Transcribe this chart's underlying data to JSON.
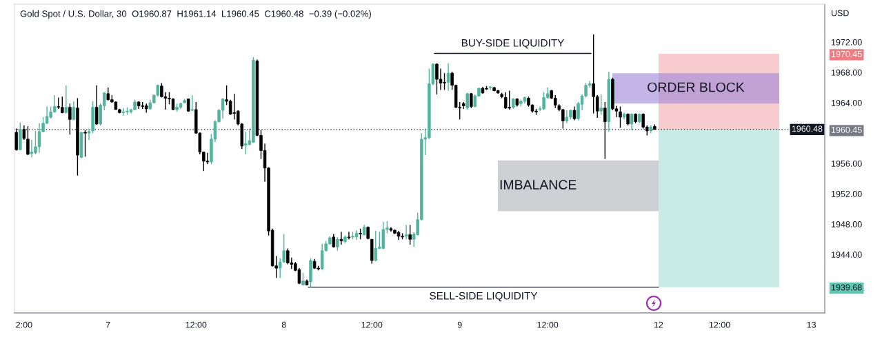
{
  "chart_data": {
    "type": "candlestick",
    "title": "Gold Spot / U.S. Dollar, 30  O1960.87  H1961.14  L1960.45  C1960.48  −0.39 (−0.02%)",
    "ylabel": "USD",
    "categories": [
      null,
      null,
      "2:00",
      null,
      null,
      null,
      null,
      null,
      null,
      null,
      null,
      null,
      null,
      null,
      null,
      null,
      null,
      null,
      null,
      null,
      null,
      null,
      null,
      null,
      "7",
      null,
      null,
      null,
      null,
      null,
      null,
      null,
      null,
      null,
      null,
      null,
      null,
      null,
      null,
      null,
      null,
      null,
      null,
      null,
      null,
      null,
      null,
      "12:00",
      null,
      null,
      null,
      null,
      null,
      null,
      null,
      null,
      null,
      null,
      null,
      null,
      null,
      null,
      null,
      null,
      null,
      null,
      null,
      null,
      null,
      null,
      "8",
      null,
      null,
      null,
      null,
      null,
      null,
      null,
      null,
      null,
      null,
      null,
      null,
      null,
      null,
      null,
      null,
      null,
      null,
      null,
      null,
      null,
      null,
      "12:00",
      null,
      null,
      null,
      null,
      null,
      null,
      null,
      null,
      null,
      null,
      null,
      null,
      null,
      null,
      null,
      null,
      null,
      null,
      null,
      null,
      null,
      null,
      "9",
      null,
      null,
      null,
      null,
      null,
      null,
      null,
      null,
      null,
      null,
      null,
      null,
      null,
      null,
      null,
      null,
      null,
      null,
      null,
      null,
      null,
      null,
      "12:00",
      null,
      null,
      null,
      null,
      null,
      null,
      null,
      null,
      null,
      null,
      null,
      null,
      null,
      null,
      null,
      null,
      null,
      null,
      null,
      null,
      null,
      null,
      null,
      null,
      null,
      null,
      null,
      null,
      "12",
      null,
      null,
      null,
      null,
      null,
      null,
      null,
      null,
      null,
      null,
      null,
      null,
      null,
      null,
      null,
      "12:00",
      null,
      null,
      null,
      null,
      null,
      null,
      null,
      null,
      null,
      null,
      null,
      null,
      null,
      null,
      null,
      null,
      null,
      null,
      null,
      null,
      null,
      null,
      null,
      "13",
      null,
      null,
      null
    ],
    "ohlc": [
      [
        1960.1,
        1960.6,
        1957.7,
        1957.8
      ],
      [
        1957.8,
        1961.4,
        1957.8,
        1960.5
      ],
      [
        1960.5,
        1961.0,
        1959.1,
        1959.3
      ],
      [
        1959.2,
        1960.9,
        1957.1,
        1957.2
      ],
      [
        1957.3,
        1959.1,
        1956.8,
        1957.5
      ],
      [
        1957.4,
        1960.3,
        1957.2,
        1958.2
      ],
      [
        1958.2,
        1961.3,
        1957.4,
        1960.2
      ],
      [
        1960.2,
        1962.1,
        1960.1,
        1961.3
      ],
      [
        1961.3,
        1963.5,
        1961.2,
        1962.2
      ],
      [
        1962.1,
        1963.5,
        1961.9,
        1962.8
      ],
      [
        1962.8,
        1965.0,
        1962.7,
        1963.5
      ],
      [
        1963.5,
        1964.7,
        1963.2,
        1963.4
      ],
      [
        1963.4,
        1964.8,
        1962.6,
        1962.7
      ],
      [
        1962.7,
        1966.3,
        1962.6,
        1963.4
      ],
      [
        1963.4,
        1963.9,
        1959.8,
        1961.8
      ],
      [
        1961.8,
        1964.2,
        1961.7,
        1963.4
      ],
      [
        1963.3,
        1964.6,
        1954.4,
        1957.1
      ],
      [
        1956.8,
        1960.1,
        1956.7,
        1960.1
      ],
      [
        1960.1,
        1960.4,
        1956.9,
        1960.0
      ],
      [
        1960.0,
        1960.6,
        1959.1,
        1960.2
      ],
      [
        1960.3,
        1964.2,
        1960.0,
        1963.4
      ],
      [
        1963.4,
        1966.3,
        1961.1,
        1961.2
      ],
      [
        1961.2,
        1963.9,
        1961.0,
        1963.7
      ],
      [
        1963.6,
        1965.4,
        1963.0,
        1965.3
      ],
      [
        1965.2,
        1966.0,
        1964.3,
        1964.4
      ],
      [
        1964.4,
        1965.0,
        1964.0,
        1964.1
      ],
      [
        1964.1,
        1964.2,
        1963.1,
        1963.1
      ],
      [
        1963.1,
        1963.2,
        1962.6,
        1962.7
      ],
      [
        1962.7,
        1963.3,
        1962.3,
        1962.8
      ],
      [
        1962.8,
        1963.4,
        1962.4,
        1962.9
      ],
      [
        1962.8,
        1963.2,
        1962.6,
        1963.1
      ],
      [
        1963.1,
        1964.4,
        1963.0,
        1964.1
      ],
      [
        1964.1,
        1964.2,
        1963.2,
        1963.6
      ],
      [
        1963.6,
        1964.1,
        1963.2,
        1963.5
      ],
      [
        1963.6,
        1963.9,
        1962.7,
        1963.2
      ],
      [
        1963.2,
        1964.4,
        1963.1,
        1964.0
      ],
      [
        1964.0,
        1965.1,
        1963.9,
        1965.0
      ],
      [
        1965.0,
        1966.4,
        1964.8,
        1966.3
      ],
      [
        1966.2,
        1966.6,
        1964.7,
        1964.8
      ],
      [
        1964.8,
        1965.4,
        1963.1,
        1964.6
      ],
      [
        1964.6,
        1965.4,
        1963.8,
        1964.5
      ],
      [
        1964.5,
        1964.6,
        1963.0,
        1963.1
      ],
      [
        1963.1,
        1963.9,
        1962.8,
        1963.4
      ],
      [
        1963.4,
        1964.0,
        1963.2,
        1963.9
      ],
      [
        1964.0,
        1964.5,
        1963.9,
        1964.3
      ],
      [
        1964.5,
        1964.5,
        1962.8,
        1962.9
      ],
      [
        1963.0,
        1965.0,
        1962.9,
        1963.1
      ],
      [
        1963.1,
        1964.1,
        1959.9,
        1960.0
      ],
      [
        1960.0,
        1960.1,
        1957.2,
        1957.5
      ],
      [
        1957.5,
        1957.5,
        1955.0,
        1956.3
      ],
      [
        1956.3,
        1957.4,
        1955.9,
        1956.2
      ],
      [
        1956.2,
        1959.9,
        1955.9,
        1959.2
      ],
      [
        1959.2,
        1961.7,
        1958.8,
        1961.5
      ],
      [
        1961.5,
        1963.2,
        1961.4,
        1963.0
      ],
      [
        1963.0,
        1964.6,
        1961.9,
        1964.5
      ],
      [
        1964.4,
        1966.3,
        1963.7,
        1964.2
      ],
      [
        1964.2,
        1964.4,
        1962.4,
        1962.5
      ],
      [
        1962.7,
        1965.2,
        1961.8,
        1962.6
      ],
      [
        1962.9,
        1963.0,
        1961.0,
        1961.2
      ],
      [
        1961.2,
        1961.3,
        1957.9,
        1958.3
      ],
      [
        1958.4,
        1960.2,
        1957.2,
        1958.6
      ],
      [
        1958.5,
        1960.6,
        1958.4,
        1959.0
      ],
      [
        1958.8,
        1970.0,
        1958.7,
        1969.6
      ],
      [
        1969.5,
        1969.7,
        1959.6,
        1959.7
      ],
      [
        1959.7,
        1960.4,
        1956.6,
        1957.7
      ],
      [
        1957.7,
        1958.6,
        1953.6,
        1955.4
      ],
      [
        1955.4,
        1955.5,
        1946.5,
        1947.1
      ],
      [
        1947.2,
        1947.4,
        1942.4,
        1942.5
      ],
      [
        1942.5,
        1943.8,
        1940.9,
        1942.2
      ],
      [
        1942.2,
        1943.5,
        1940.9,
        1943.0
      ],
      [
        1943.0,
        1946.7,
        1942.9,
        1944.5
      ],
      [
        1944.5,
        1944.8,
        1942.7,
        1942.9
      ],
      [
        1942.9,
        1943.6,
        1942.1,
        1942.7
      ],
      [
        1942.8,
        1943.0,
        1941.8,
        1941.9
      ],
      [
        1942.0,
        1942.2,
        1940.1,
        1940.2
      ],
      [
        1940.0,
        1941.6,
        1939.9,
        1940.5
      ],
      [
        1940.5,
        1940.7,
        1939.9,
        1940.0
      ],
      [
        1940.4,
        1943.5,
        1939.7,
        1943.2
      ],
      [
        1943.1,
        1943.4,
        1942.1,
        1942.2
      ],
      [
        1942.2,
        1942.5,
        1941.9,
        1942.1
      ],
      [
        1942.1,
        1945.4,
        1942.0,
        1944.5
      ],
      [
        1944.5,
        1945.8,
        1944.4,
        1945.4
      ],
      [
        1945.4,
        1946.4,
        1945.3,
        1946.2
      ],
      [
        1946.3,
        1946.7,
        1944.9,
        1945.0
      ],
      [
        1945.0,
        1946.3,
        1944.5,
        1946.0
      ],
      [
        1946.0,
        1947.0,
        1945.3,
        1945.8
      ],
      [
        1945.7,
        1946.5,
        1945.5,
        1946.3
      ],
      [
        1946.3,
        1947.0,
        1946.0,
        1946.2
      ],
      [
        1946.3,
        1947.0,
        1946.0,
        1946.4
      ],
      [
        1946.3,
        1947.2,
        1945.9,
        1946.8
      ],
      [
        1946.8,
        1947.4,
        1946.0,
        1946.7
      ],
      [
        1946.6,
        1947.9,
        1946.5,
        1947.6
      ],
      [
        1947.6,
        1947.7,
        1946.0,
        1946.1
      ],
      [
        1946.0,
        1946.0,
        1942.8,
        1943.2
      ],
      [
        1943.2,
        1947.1,
        1943.1,
        1944.8
      ],
      [
        1944.8,
        1947.0,
        1944.7,
        1945.0
      ],
      [
        1944.8,
        1948.3,
        1944.7,
        1947.3
      ],
      [
        1947.3,
        1948.4,
        1946.8,
        1947.5
      ],
      [
        1947.4,
        1947.6,
        1947.0,
        1947.2
      ],
      [
        1947.2,
        1947.3,
        1946.7,
        1946.8
      ],
      [
        1946.9,
        1947.1,
        1945.9,
        1946.4
      ],
      [
        1946.4,
        1946.8,
        1946.0,
        1946.3
      ],
      [
        1946.4,
        1947.9,
        1946.0,
        1946.6
      ],
      [
        1946.6,
        1947.9,
        1945.3,
        1946.0
      ],
      [
        1946.0,
        1946.9,
        1945.0,
        1946.7
      ],
      [
        1946.6,
        1949.5,
        1946.5,
        1948.6
      ],
      [
        1948.6,
        1960.0,
        1948.5,
        1959.2
      ],
      [
        1959.2,
        1960.6,
        1957.1,
        1959.4
      ],
      [
        1959.4,
        1968.5,
        1959.2,
        1966.5
      ],
      [
        1966.5,
        1969.2,
        1966.3,
        1969.1
      ],
      [
        1969.1,
        1969.2,
        1965.1,
        1967.1
      ],
      [
        1967.1,
        1968.5,
        1965.7,
        1966.6
      ],
      [
        1966.7,
        1967.9,
        1965.7,
        1966.6
      ],
      [
        1966.7,
        1969.2,
        1965.6,
        1967.9
      ],
      [
        1967.9,
        1968.1,
        1965.7,
        1966.3
      ],
      [
        1966.3,
        1966.4,
        1963.3,
        1963.4
      ],
      [
        1963.4,
        1964.1,
        1961.8,
        1963.3
      ],
      [
        1963.9,
        1964.1,
        1963.2,
        1963.6
      ],
      [
        1963.3,
        1965.3,
        1963.1,
        1965.2
      ],
      [
        1965.2,
        1965.3,
        1963.3,
        1963.5
      ],
      [
        1963.5,
        1965.1,
        1963.4,
        1964.9
      ],
      [
        1964.9,
        1966.0,
        1964.8,
        1965.9
      ],
      [
        1965.9,
        1966.1,
        1965.2,
        1965.3
      ],
      [
        1965.9,
        1966.2,
        1965.7,
        1965.8
      ],
      [
        1966.0,
        1966.2,
        1965.7,
        1966.1
      ],
      [
        1966.0,
        1966.1,
        1965.5,
        1965.6
      ],
      [
        1965.6,
        1965.7,
        1965.2,
        1965.3
      ],
      [
        1965.1,
        1965.3,
        1964.6,
        1964.8
      ],
      [
        1964.7,
        1965.4,
        1963.2,
        1963.3
      ],
      [
        1963.4,
        1965.6,
        1963.1,
        1963.3
      ],
      [
        1963.4,
        1964.6,
        1963.2,
        1964.5
      ],
      [
        1964.5,
        1964.6,
        1963.5,
        1963.7
      ],
      [
        1963.9,
        1964.4,
        1963.5,
        1964.2
      ],
      [
        1964.2,
        1964.8,
        1963.9,
        1964.7
      ],
      [
        1964.6,
        1964.8,
        1963.5,
        1963.7
      ],
      [
        1963.7,
        1963.8,
        1962.7,
        1962.9
      ],
      [
        1962.9,
        1963.2,
        1962.4,
        1962.8
      ],
      [
        1963.1,
        1963.5,
        1962.9,
        1963.2
      ],
      [
        1963.2,
        1965.4,
        1963.0,
        1964.7
      ],
      [
        1964.7,
        1966.0,
        1964.5,
        1965.2
      ],
      [
        1965.6,
        1965.7,
        1964.5,
        1964.6
      ],
      [
        1964.6,
        1965.0,
        1963.3,
        1963.7
      ],
      [
        1963.6,
        1963.8,
        1962.9,
        1963.1
      ],
      [
        1963.1,
        1963.2,
        1960.6,
        1961.6
      ],
      [
        1961.6,
        1963.0,
        1961.3,
        1962.1
      ],
      [
        1962.1,
        1963.1,
        1961.8,
        1963.0
      ],
      [
        1963.0,
        1963.5,
        1961.7,
        1961.9
      ],
      [
        1961.9,
        1964.1,
        1961.7,
        1963.9
      ],
      [
        1963.8,
        1965.1,
        1963.0,
        1964.9
      ],
      [
        1964.9,
        1966.6,
        1964.7,
        1966.3
      ],
      [
        1966.3,
        1966.9,
        1966.0,
        1966.5
      ],
      [
        1966.5,
        1973.0,
        1962.6,
        1964.8
      ],
      [
        1964.8,
        1965.0,
        1962.0,
        1962.9
      ],
      [
        1962.9,
        1965.1,
        1962.4,
        1963.3
      ],
      [
        1963.3,
        1964.1,
        1956.6,
        1961.5
      ],
      [
        1961.5,
        1968.1,
        1960.2,
        1967.1
      ],
      [
        1967.1,
        1967.3,
        1963.0,
        1963.2
      ],
      [
        1963.2,
        1963.6,
        1962.1,
        1962.9
      ],
      [
        1962.8,
        1963.5,
        1960.7,
        1962.1
      ],
      [
        1962.1,
        1962.7,
        1961.8,
        1962.5
      ],
      [
        1962.5,
        1962.6,
        1961.0,
        1961.2
      ],
      [
        1961.2,
        1962.6,
        1960.4,
        1962.5
      ],
      [
        1962.5,
        1962.6,
        1961.3,
        1961.5
      ],
      [
        1961.5,
        1962.6,
        1961.3,
        1962.5
      ],
      [
        1962.5,
        1962.6,
        1960.6,
        1960.8
      ],
      [
        1960.8,
        1961.0,
        1959.7,
        1960.3
      ],
      [
        1960.3,
        1961.0,
        1960.0,
        1960.8
      ],
      [
        1960.87,
        1961.14,
        1960.45,
        1960.48
      ],
      null,
      null,
      null,
      null,
      null,
      null,
      null,
      null,
      null,
      null,
      null,
      null,
      null,
      null,
      null,
      null,
      null,
      null,
      null,
      null,
      null,
      null,
      null,
      null,
      null,
      null,
      null,
      null,
      null,
      null,
      null,
      null,
      null,
      null,
      null,
      null,
      null,
      null,
      null,
      null,
      null,
      null,
      null,
      null
    ],
    "colors": [
      "#000000",
      "#53b39f",
      "#000000",
      "#000000",
      "#53b39f",
      "#53b39f",
      "#53b39f",
      "#53b39f",
      "#53b39f",
      "#53b39f",
      "#53b39f",
      "#000000",
      "#000000",
      "#53b39f",
      "#000000",
      "#53b39f",
      "#000000",
      "#53b39f",
      "#000000",
      "#53b39f",
      "#53b39f",
      "#000000",
      "#53b39f",
      "#53b39f",
      "#000000",
      "#000000",
      "#000000",
      "#000000",
      "#53b39f",
      "#53b39f",
      "#53b39f",
      "#53b39f",
      "#000000",
      "#000000",
      "#000000",
      "#53b39f",
      "#53b39f",
      "#53b39f",
      "#000000",
      "#000000",
      "#000000",
      "#000000",
      "#53b39f",
      "#53b39f",
      "#53b39f",
      "#000000",
      "#53b39f",
      "#000000",
      "#000000",
      "#000000",
      "#000000",
      "#53b39f",
      "#53b39f",
      "#53b39f",
      "#53b39f",
      "#000000",
      "#000000",
      "#000000",
      "#000000",
      "#000000",
      "#53b39f",
      "#53b39f",
      "#53b39f",
      "#000000",
      "#000000",
      "#000000",
      "#000000",
      "#000000",
      "#000000",
      "#53b39f",
      "#53b39f",
      "#000000",
      "#000000",
      "#000000",
      "#000000",
      "#53b39f",
      "#000000",
      "#53b39f",
      "#000000",
      "#000000",
      "#53b39f",
      "#53b39f",
      "#53b39f",
      "#000000",
      "#53b39f",
      "#000000",
      "#53b39f",
      "#000000",
      "#53b39f",
      "#53b39f",
      "#000000",
      "#53b39f",
      "#000000",
      "#000000",
      "#53b39f",
      "#53b39f",
      "#53b39f",
      "#53b39f",
      "#000000",
      "#000000",
      "#000000",
      "#000000",
      "#53b39f",
      "#000000",
      "#53b39f",
      "#53b39f",
      "#53b39f",
      "#53b39f",
      "#53b39f",
      "#53b39f",
      "#000000",
      "#000000",
      "#000000",
      "#53b39f",
      "#000000",
      "#000000",
      "#000000",
      "#000000",
      "#53b39f",
      "#000000",
      "#53b39f",
      "#53b39f",
      "#000000",
      "#000000",
      "#53b39f",
      "#000000",
      "#000000",
      "#000000",
      "#000000",
      "#000000",
      "#53b39f",
      "#000000",
      "#53b39f",
      "#53b39f",
      "#000000",
      "#000000",
      "#000000",
      "#53b39f",
      "#53b39f",
      "#53b39f",
      "#000000",
      "#000000",
      "#000000",
      "#000000",
      "#53b39f",
      "#53b39f",
      "#000000",
      "#53b39f",
      "#53b39f",
      "#53b39f",
      "#53b39f",
      "#000000",
      "#000000",
      "#53b39f",
      "#000000",
      "#53b39f",
      "#000000",
      "#000000",
      "#000000",
      "#53b39f",
      "#000000",
      "#53b39f",
      "#000000",
      "#53b39f",
      "#000000",
      "#000000",
      "#53b39f",
      "#000000",
      null,
      null,
      null,
      null,
      null,
      null,
      null,
      null,
      null,
      null,
      null,
      null,
      null,
      null,
      null,
      null,
      null,
      null,
      null,
      null,
      null,
      null,
      null,
      null,
      null,
      null,
      null,
      null,
      null,
      null,
      null,
      null,
      null,
      null,
      null,
      null,
      null,
      null,
      null,
      null,
      null,
      null,
      null,
      null
    ],
    "ylim": [
      1936.3,
      1977.0
    ],
    "yticks": [
      {
        "value": 1944,
        "label": "1944.00"
      },
      {
        "value": 1948,
        "label": "1948.00"
      },
      {
        "value": 1952,
        "label": "1952.00"
      },
      {
        "value": 1956,
        "label": "1956.00"
      },
      {
        "value": 1964,
        "label": "1964.00"
      },
      {
        "value": 1968,
        "label": "1968.00"
      },
      {
        "value": 1972,
        "label": "1972.00"
      },
      {
        "value": 1970.45,
        "label": "1970.45"
      },
      {
        "value": 1960.45,
        "label": "1960.45"
      },
      {
        "value": 1939.68,
        "label": "1939.68"
      }
    ],
    "bands": [
      {
        "axis": "y",
        "from": 1960.45,
        "to": 1970.45,
        "color": "#f9cdd0"
      },
      {
        "axis": "y",
        "from": 1939.68,
        "to": 1960.45,
        "color": "#c8ebe5"
      },
      {
        "axis": "y",
        "from": 1949.7,
        "to": 1956.4,
        "label": "IMBALANCE",
        "color": "#cfd0d3"
      },
      {
        "axis": "y",
        "from": 1963.9,
        "to": 1967.9,
        "label": "ORDER BLOCK",
        "color": "#c4b5e8"
      }
    ],
    "ref_lines": [
      {
        "axis": "y",
        "value": 1970.5,
        "label": "BUY-SIDE LIQUIDITY",
        "color": "#131722",
        "line_style": "solid"
      },
      {
        "axis": "y",
        "value": 1939.7,
        "label": "SELL-SIDE LIQUIDITY",
        "color": "#131722",
        "line_style": "solid"
      },
      {
        "axis": "y",
        "value": 1960.48,
        "label": "1960.48",
        "color": "#131722",
        "line_style": "dotted"
      }
    ]
  }
}
